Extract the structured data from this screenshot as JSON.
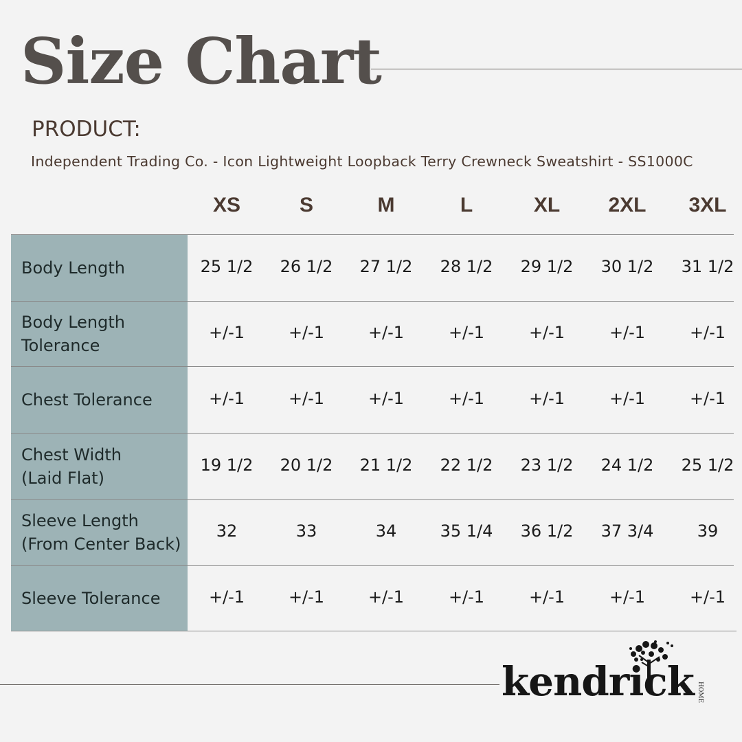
{
  "title": "Size Chart",
  "product_label": "PRODUCT:",
  "product_name": "Independent Trading Co. - Icon Lightweight Loopback Terry Crewneck Sweatshirt - SS1000C",
  "sizes": [
    "XS",
    "S",
    "M",
    "L",
    "XL",
    "2XL",
    "3XL"
  ],
  "rows": [
    {
      "label": "Body Length",
      "values": [
        "25 1/2",
        "26 1/2",
        "27 1/2",
        "28 1/2",
        "29 1/2",
        "30 1/2",
        "31 1/2"
      ]
    },
    {
      "label": "Body Length\nTolerance",
      "values": [
        "+/-1",
        "+/-1",
        "+/-1",
        "+/-1",
        "+/-1",
        "+/-1",
        "+/-1"
      ]
    },
    {
      "label": "Chest Tolerance",
      "values": [
        "+/-1",
        "+/-1",
        "+/-1",
        "+/-1",
        "+/-1",
        "+/-1",
        "+/-1"
      ]
    },
    {
      "label": "Chest Width\n(Laid Flat)",
      "values": [
        "19 1/2",
        "20 1/2",
        "21 1/2",
        "22 1/2",
        "23 1/2",
        "24 1/2",
        "25 1/2"
      ]
    },
    {
      "label": "Sleeve Length\n(From Center Back)",
      "values": [
        "32",
        "33",
        "34",
        "35 1/4",
        "36 1/2",
        "37 3/4",
        "39"
      ]
    },
    {
      "label": "Sleeve Tolerance",
      "values": [
        "+/-1",
        "+/-1",
        "+/-1",
        "+/-1",
        "+/-1",
        "+/-1",
        "+/-1"
      ]
    }
  ],
  "logo": {
    "word": "kendrick",
    "sub": "HOME"
  },
  "colors": {
    "label_column": "#9db3b6",
    "title": "#544f4c",
    "text_brown": "#4b3a31"
  }
}
